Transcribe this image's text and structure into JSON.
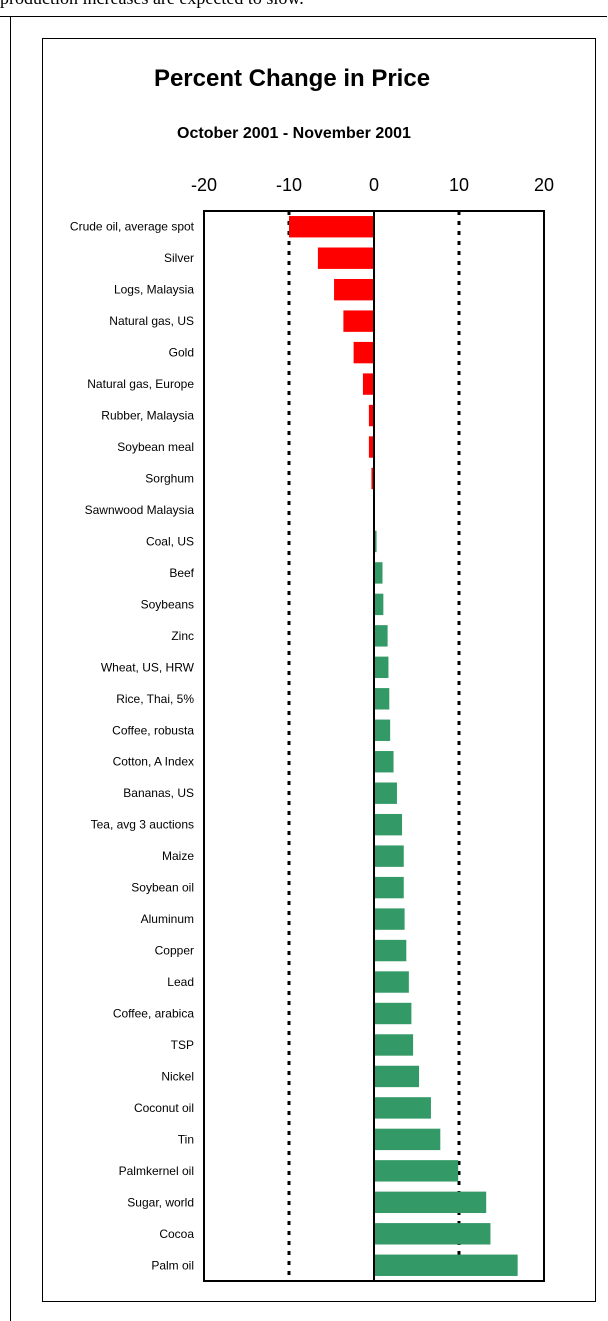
{
  "page": {
    "top_text": "production increases are expected to slow."
  },
  "chart_data": {
    "type": "bar",
    "orientation": "horizontal",
    "title": "Percent Change in Price",
    "subtitle": "October 2001 - November 2001",
    "xlim": [
      -20,
      20
    ],
    "xticks": [
      -20,
      -10,
      0,
      10,
      20
    ],
    "x_axis_position": "top",
    "grid": "dotted vertical lines at -10 and 10",
    "legend": "none",
    "colors": {
      "negative": "#ff0000",
      "positive": "#339966"
    },
    "categories": [
      "Crude oil, average spot",
      "Silver",
      "Logs, Malaysia",
      "Natural gas, US",
      "Gold",
      "Natural gas, Europe",
      "Rubber, Malaysia",
      "Soybean meal",
      "Sorghum",
      "Sawnwood Malaysia",
      "Coal, US",
      "Beef",
      "Soybeans",
      "Zinc",
      "Wheat, US, HRW",
      "Rice, Thai, 5%",
      "Coffee,  robusta",
      "Cotton, A Index",
      "Bananas, US",
      "Tea, avg 3 auctions",
      "Maize",
      "Soybean oil",
      "Aluminum",
      "Copper",
      "Lead",
      "Coffee, arabica",
      "TSP",
      "Nickel",
      "Coconut oil",
      "Tin",
      "Palmkernel oil",
      "Sugar, world",
      "Cocoa",
      "Palm oil"
    ],
    "values": [
      -10.0,
      -6.6,
      -4.7,
      -3.6,
      -2.4,
      -1.3,
      -0.6,
      -0.6,
      -0.3,
      0.0,
      0.3,
      1.0,
      1.1,
      1.6,
      1.7,
      1.8,
      1.9,
      2.3,
      2.7,
      3.3,
      3.5,
      3.5,
      3.6,
      3.8,
      4.1,
      4.4,
      4.6,
      5.3,
      6.7,
      7.8,
      9.9,
      13.2,
      13.7,
      16.9
    ]
  }
}
